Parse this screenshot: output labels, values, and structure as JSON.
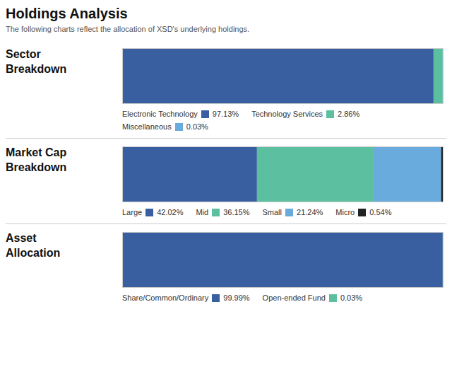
{
  "title": "Holdings Analysis",
  "subtitle": "The following charts reflect the allocation of XSD's underlying holdings.",
  "chart_data": [
    {
      "type": "bar",
      "orientation": "horizontal",
      "stacked": true,
      "title": "Sector\nBreakdown",
      "tick_labels": false,
      "grid": false,
      "legend": "bottom",
      "xlim": [
        0,
        100.02
      ],
      "series": [
        {
          "name": "Electronic Technology",
          "color": "#3a5fa0",
          "values": [
            97.13
          ],
          "value_labels": [
            "97.13%"
          ]
        },
        {
          "name": "Technology Services",
          "color": "#5cbfa0",
          "values": [
            2.86
          ],
          "value_labels": [
            "2.86%"
          ]
        },
        {
          "name": "Miscellaneous",
          "color": "#6aabde",
          "values": [
            0.03
          ],
          "value_labels": [
            "0.03%"
          ]
        }
      ]
    },
    {
      "type": "bar",
      "orientation": "horizontal",
      "stacked": true,
      "title": "Market Cap\nBreakdown",
      "tick_labels": false,
      "grid": false,
      "legend": "bottom",
      "xlim": [
        0,
        99.95
      ],
      "series": [
        {
          "name": "Large",
          "color": "#3a5fa0",
          "values": [
            42.02
          ],
          "value_labels": [
            "42.02%"
          ]
        },
        {
          "name": "Mid",
          "color": "#5cbfa0",
          "values": [
            36.15
          ],
          "value_labels": [
            "36.15%"
          ]
        },
        {
          "name": "Small",
          "color": "#6aabde",
          "values": [
            21.24
          ],
          "value_labels": [
            "21.24%"
          ]
        },
        {
          "name": "Micro",
          "color": "#222222",
          "values": [
            0.54
          ],
          "value_labels": [
            "0.54%"
          ]
        }
      ]
    },
    {
      "type": "bar",
      "orientation": "horizontal",
      "stacked": true,
      "title": "Asset\nAllocation",
      "tick_labels": false,
      "grid": false,
      "legend": "bottom",
      "xlim": [
        0,
        100.02
      ],
      "series": [
        {
          "name": "Share/Common/Ordinary",
          "color": "#3a5fa0",
          "values": [
            99.99
          ],
          "value_labels": [
            "99.99%"
          ]
        },
        {
          "name": "Open-ended Fund",
          "color": "#5cbfa0",
          "values": [
            0.03
          ],
          "value_labels": [
            "0.03%"
          ]
        }
      ]
    }
  ]
}
